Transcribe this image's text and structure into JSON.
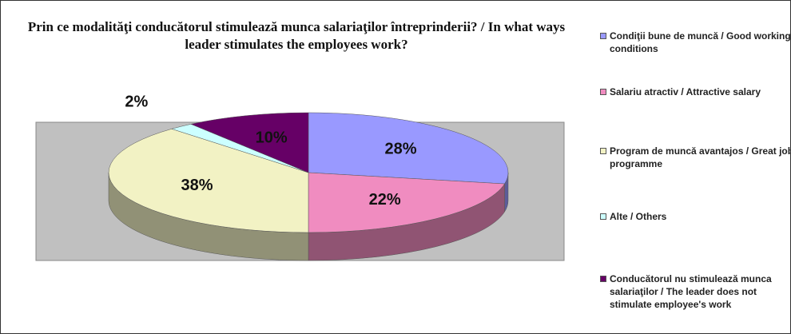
{
  "chart_data": {
    "type": "pie",
    "title": "Prin ce modalităţi conducătorul stimulează munca salariaţilor întreprinderii? / In what ways leader stimulates the employees work?",
    "categories": [
      "Condiţii bune de muncă / Good working conditions",
      "Salariu atractiv / Attractive salary",
      "Program de muncă avantajos / Great job programme",
      "Alte / Others",
      "Conducătorul nu stimulează munca salariaţilor / The leader does not stimulate employee's work"
    ],
    "values": [
      28,
      22,
      38,
      2,
      10
    ],
    "value_labels": [
      "28%",
      "22%",
      "38%",
      "2%",
      "10%"
    ],
    "colors": [
      "#9999ff",
      "#f08cc0",
      "#f2f2c4",
      "#ccffff",
      "#660066"
    ],
    "legend": "right"
  }
}
